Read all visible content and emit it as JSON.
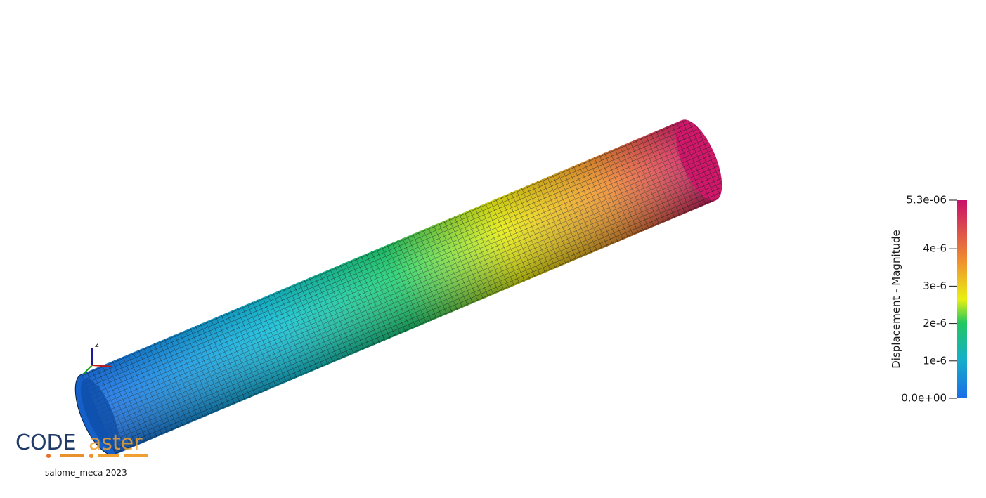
{
  "viewer": {
    "colorbar": {
      "title": "Displacement - Magnitude",
      "range": [
        0,
        5.3e-06
      ],
      "ticks": [
        {
          "value": 0,
          "label": "0.0e+00"
        },
        {
          "value": 1e-06,
          "label": "1e-6"
        },
        {
          "value": 2e-06,
          "label": "2e-6"
        },
        {
          "value": 3e-06,
          "label": "3e-6"
        },
        {
          "value": 4e-06,
          "label": "4e-6"
        },
        {
          "value": 5.3e-06,
          "label": "5.3e-06"
        }
      ]
    },
    "axes": {
      "z": "z"
    },
    "logo": {
      "code": "CODE",
      "aster": "aster",
      "version": "salome_meca 2023"
    }
  }
}
